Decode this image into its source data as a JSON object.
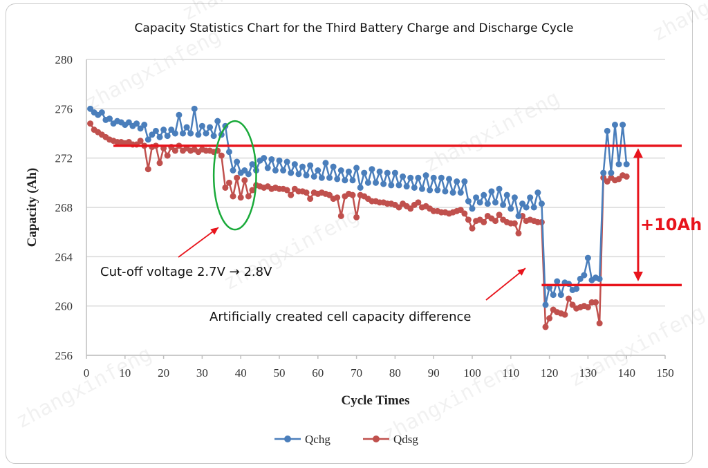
{
  "chart_data": {
    "type": "line",
    "title": "Capacity Statistics Chart for the Third Battery Charge and Discharge Cycle",
    "xlabel": "Cycle Times",
    "ylabel": "Capacity (Ah)",
    "xlim": [
      0,
      150
    ],
    "ylim": [
      256,
      280
    ],
    "xticks": [
      0,
      10,
      20,
      30,
      40,
      50,
      60,
      70,
      80,
      90,
      100,
      110,
      120,
      130,
      140,
      150
    ],
    "yticks": [
      256,
      260,
      264,
      268,
      272,
      276,
      280
    ],
    "grid": "horizontal",
    "legend_position": "bottom",
    "x": [
      1,
      2,
      3,
      4,
      5,
      6,
      7,
      8,
      9,
      10,
      11,
      12,
      13,
      14,
      15,
      16,
      17,
      18,
      19,
      20,
      21,
      22,
      23,
      24,
      25,
      26,
      27,
      28,
      29,
      30,
      31,
      32,
      33,
      34,
      35,
      36,
      37,
      38,
      39,
      40,
      41,
      42,
      43,
      44,
      45,
      46,
      47,
      48,
      49,
      50,
      51,
      52,
      53,
      54,
      55,
      56,
      57,
      58,
      59,
      60,
      61,
      62,
      63,
      64,
      65,
      66,
      67,
      68,
      69,
      70,
      71,
      72,
      73,
      74,
      75,
      76,
      77,
      78,
      79,
      80,
      81,
      82,
      83,
      84,
      85,
      86,
      87,
      88,
      89,
      90,
      91,
      92,
      93,
      94,
      95,
      96,
      97,
      98,
      99,
      100,
      101,
      102,
      103,
      104,
      105,
      106,
      107,
      108,
      109,
      110,
      111,
      112,
      113,
      114,
      115,
      116,
      117,
      118,
      119,
      120,
      121,
      122,
      123,
      124,
      125,
      126,
      127,
      128,
      129,
      130,
      131,
      132,
      133,
      134,
      135,
      136,
      137,
      138,
      139,
      140
    ],
    "series": [
      {
        "name": "Qchg",
        "color": "#4a7ebb",
        "values": [
          276.0,
          275.7,
          275.5,
          275.7,
          275.1,
          275.2,
          274.8,
          275.0,
          274.9,
          274.7,
          274.9,
          274.6,
          274.8,
          274.4,
          274.7,
          273.5,
          273.9,
          274.2,
          273.7,
          274.3,
          273.8,
          274.3,
          274.0,
          275.5,
          274.0,
          274.5,
          274.0,
          276.0,
          273.9,
          274.6,
          274.0,
          274.5,
          273.8,
          275.0,
          273.9,
          274.6,
          272.5,
          271.0,
          271.7,
          270.8,
          271.0,
          270.7,
          271.5,
          271.0,
          271.8,
          272.0,
          271.2,
          271.9,
          271.0,
          271.8,
          271.0,
          271.7,
          270.8,
          271.5,
          270.7,
          271.3,
          270.6,
          271.4,
          270.5,
          271.0,
          270.4,
          271.6,
          270.4,
          271.3,
          270.3,
          271.0,
          270.2,
          270.9,
          270.2,
          271.2,
          269.6,
          270.8,
          270.0,
          271.1,
          270.0,
          270.9,
          269.9,
          270.8,
          269.8,
          270.8,
          269.8,
          270.5,
          269.7,
          270.4,
          269.6,
          270.4,
          269.5,
          270.6,
          269.4,
          270.4,
          269.4,
          270.4,
          269.3,
          270.3,
          269.2,
          270.1,
          269.2,
          270.1,
          268.5,
          267.9,
          268.8,
          268.4,
          269.0,
          268.3,
          269.3,
          268.4,
          269.5,
          268.2,
          269.0,
          267.9,
          268.8,
          267.3,
          268.3,
          268.0,
          268.8,
          268.0,
          269.2,
          268.3,
          260.1,
          261.5,
          260.9,
          262.0,
          260.9,
          261.9,
          261.8,
          261.3,
          261.4,
          262.2,
          262.5,
          263.9,
          262.1,
          262.3,
          262.2,
          270.8,
          274.2,
          270.8,
          274.7,
          271.5,
          274.7,
          271.5
        ]
      },
      {
        "name": "Qdsg",
        "color": "#c0504d",
        "values": [
          274.8,
          274.3,
          274.1,
          273.9,
          273.7,
          273.5,
          273.4,
          273.3,
          273.3,
          273.2,
          273.3,
          273.1,
          273.1,
          273.4,
          273.0,
          271.1,
          272.9,
          273.0,
          271.6,
          272.8,
          272.2,
          272.9,
          272.6,
          273.0,
          272.6,
          272.8,
          272.6,
          272.7,
          272.5,
          272.7,
          272.6,
          272.6,
          272.5,
          272.6,
          272.2,
          269.6,
          270.0,
          268.9,
          270.4,
          268.8,
          270.2,
          268.9,
          269.4,
          269.8,
          269.7,
          269.6,
          269.7,
          269.5,
          269.6,
          269.5,
          269.5,
          269.4,
          269.0,
          269.5,
          269.3,
          269.3,
          269.2,
          268.7,
          269.2,
          269.1,
          269.2,
          269.1,
          269.0,
          268.7,
          268.8,
          267.3,
          268.9,
          269.1,
          269.0,
          267.2,
          269.0,
          268.9,
          268.7,
          268.5,
          268.5,
          268.4,
          268.4,
          268.3,
          268.3,
          268.2,
          268.0,
          268.3,
          268.1,
          267.9,
          268.2,
          268.4,
          268.0,
          268.1,
          267.9,
          267.7,
          267.7,
          267.6,
          267.6,
          267.5,
          267.6,
          267.7,
          267.8,
          267.5,
          267.0,
          266.3,
          266.9,
          267.0,
          266.8,
          267.3,
          267.1,
          266.9,
          267.4,
          267.0,
          266.8,
          266.7,
          266.7,
          265.9,
          267.3,
          266.9,
          267.0,
          266.9,
          266.8,
          266.8,
          258.3,
          259.0,
          259.7,
          259.5,
          259.4,
          259.3,
          260.6,
          260.1,
          259.8,
          259.9,
          260.0,
          259.9,
          260.3,
          260.3,
          258.6,
          270.4,
          270.1,
          270.4,
          270.2,
          270.3,
          270.6,
          270.5
        ]
      }
    ],
    "annotations": {
      "upper_reference_line": {
        "y": 273,
        "x_from": 7,
        "color": "#e8141c"
      },
      "lower_reference_line": {
        "y": 261.7,
        "x_from": 118,
        "color": "#e8141c"
      },
      "difference_label": "+10Ah",
      "difference_arrow": {
        "x": 143,
        "y_from": 262,
        "y_to": 272.8
      },
      "highlight_ellipse": {
        "cx": 38.5,
        "cy": 270.6,
        "rx": 5.5,
        "ry": 4.4,
        "color": "#1aaa3a"
      },
      "cutoff_text": "Cut-off voltage 2.7V → 2.8V",
      "cell_diff_text": "Artificially created cell capacity difference"
    }
  },
  "watermark": "zhangxinfeng"
}
